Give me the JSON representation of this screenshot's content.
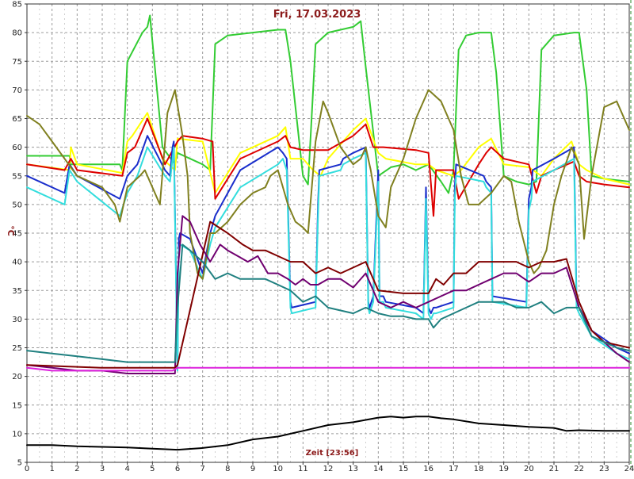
{
  "chart_data": {
    "type": "line",
    "title": "Fri, 17.03.2023",
    "xlabel": "Zeit [23:56]",
    "ylabel": "°C",
    "xlim": [
      0,
      24
    ],
    "ylim": [
      5,
      85
    ],
    "xticks": [
      "0",
      "1",
      "2",
      "3",
      "4",
      "5",
      "6",
      "7",
      "8",
      "9",
      "10",
      "11",
      "12",
      "13",
      "14",
      "15",
      "16",
      "17",
      "18",
      "19",
      "20",
      "21",
      "22",
      "23",
      "24"
    ],
    "yticks": [
      "5",
      "10",
      "15",
      "20",
      "25",
      "30",
      "35",
      "40",
      "45",
      "50",
      "55",
      "60",
      "65",
      "70",
      "75",
      "80",
      "85"
    ],
    "grid": true,
    "series": [
      {
        "color": "#33cc33",
        "x": [
          0,
          1.7,
          1.75,
          3.7,
          3.8,
          4.0,
          4.6,
          4.8,
          4.9,
          5.4,
          5.9,
          6.0,
          7.0,
          7.3,
          7.5,
          8.0,
          9.0,
          10.0,
          10.3,
          10.5,
          11.0,
          11.2,
          11.5,
          12.0,
          13.0,
          13.3,
          13.5,
          14.0,
          14.5,
          15.0,
          15.5,
          16.0,
          16.5,
          16.8,
          17.0,
          17.2,
          17.5,
          18.0,
          18.5,
          18.7,
          19.0,
          19.5,
          20.0,
          20.3,
          20.5,
          21.0,
          21.8,
          22.0,
          22.3,
          22.5,
          23.0,
          24.0
        ],
        "y": [
          58.5,
          58.5,
          57,
          57,
          56,
          75,
          80,
          81,
          83,
          60,
          57,
          59,
          57,
          56,
          78,
          79.5,
          80,
          80.5,
          80.5,
          75,
          55,
          53.5,
          78,
          80,
          81,
          82,
          74,
          55,
          56.5,
          57,
          56,
          57,
          54,
          52,
          56,
          77,
          79.5,
          80,
          80,
          73,
          55,
          54,
          53.5,
          54,
          77,
          79.5,
          80,
          80,
          70,
          55,
          54.5,
          54
        ]
      },
      {
        "color": "#ffff00",
        "x": [
          0,
          1.7,
          1.75,
          2.0,
          3.8,
          4.0,
          4.2,
          4.8,
          5.4,
          5.9,
          6.0,
          7.0,
          7.5,
          8.5,
          10.0,
          10.3,
          10.5,
          11.0,
          11.4,
          11.7,
          12.0,
          13.0,
          13.5,
          14.0,
          14.3,
          15.5,
          16.0,
          16.3,
          17.0,
          17.3,
          18.0,
          18.5,
          19.0,
          20.0,
          20.5,
          21.0,
          21.7,
          22.0,
          22.3,
          23.0,
          24.0
        ],
        "y": [
          57,
          56,
          60,
          57,
          55.5,
          61,
          62,
          66,
          58,
          56,
          61.5,
          61,
          52,
          59,
          62,
          63.5,
          58,
          58,
          56,
          55,
          58,
          63,
          65,
          59,
          58,
          57,
          57,
          56,
          55,
          56,
          60,
          61.5,
          57,
          56.5,
          55,
          58,
          61,
          57,
          56,
          54.5,
          53.5
        ]
      },
      {
        "color": "#dd0000",
        "x": [
          0,
          1.5,
          1.75,
          2.0,
          3.8,
          4.0,
          4.3,
          4.8,
          5.5,
          6.0,
          6.2,
          7.0,
          7.4,
          7.5,
          8.5,
          10.0,
          10.3,
          10.5,
          11.0,
          12.0,
          13.0,
          13.5,
          13.8,
          14.2,
          15.5,
          16.0,
          16.2,
          16.3,
          16.6,
          17.0,
          17.2,
          18.0,
          18.3,
          18.5,
          19.0,
          20.0,
          20.3,
          20.5,
          21.0,
          21.8,
          22.0,
          22.3,
          23.0,
          24.0
        ],
        "y": [
          57,
          56,
          58,
          56,
          55,
          59,
          60,
          65,
          57,
          61,
          62,
          61.5,
          61,
          51,
          58,
          61,
          62,
          60,
          59.5,
          59.5,
          62,
          64,
          60,
          60,
          59.5,
          59,
          48,
          56,
          56,
          56,
          51,
          57,
          59,
          60,
          58,
          57,
          52,
          55,
          56,
          57.5,
          55,
          54,
          53.5,
          53
        ]
      },
      {
        "color": "#1a2ecc",
        "x": [
          0,
          1.5,
          1.7,
          2.0,
          3.7,
          4.0,
          4.4,
          4.8,
          5.5,
          5.7,
          5.8,
          5.85,
          6.0,
          6.05,
          6.1,
          6.5,
          7.0,
          7.3,
          7.5,
          8.5,
          10.0,
          10.2,
          10.35,
          10.5,
          10.55,
          11.5,
          11.6,
          11.65,
          12.5,
          12.6,
          13.0,
          13.5,
          13.6,
          13.65,
          13.8,
          14.0,
          14.05,
          14.2,
          14.3,
          15.5,
          15.8,
          15.9,
          16.0,
          16.1,
          16.2,
          16.3,
          17.0,
          17.05,
          17.1,
          18.2,
          18.3,
          18.5,
          18.55,
          19.9,
          20.0,
          20.1,
          20.15,
          21.0,
          21.8,
          21.9,
          22.0,
          22.5,
          23.5,
          24.0
        ],
        "y": [
          55,
          52,
          57,
          55,
          51,
          55,
          57,
          62,
          56,
          55,
          60,
          61,
          22,
          44,
          45,
          44,
          38,
          45,
          48,
          56,
          60,
          59,
          58,
          33,
          32,
          33,
          50,
          56,
          57,
          58,
          59,
          60,
          33,
          32,
          34,
          56,
          34,
          34,
          33,
          32,
          31,
          53,
          32,
          31,
          32,
          32,
          33,
          53,
          57,
          55,
          54,
          53,
          34,
          33,
          51,
          53,
          56,
          58,
          60,
          33,
          32,
          28,
          25,
          24
        ]
      },
      {
        "color": "#33dddd",
        "x": [
          0,
          1.5,
          1.7,
          2.0,
          3.7,
          4.0,
          4.4,
          4.8,
          5.5,
          5.7,
          5.8,
          5.85,
          6.0,
          6.05,
          6.1,
          6.5,
          7.0,
          7.3,
          7.5,
          8.5,
          10.0,
          10.2,
          10.35,
          10.5,
          10.55,
          11.5,
          11.6,
          11.65,
          12.5,
          12.6,
          13.0,
          13.5,
          13.6,
          13.65,
          13.8,
          14.0,
          14.05,
          14.2,
          14.3,
          15.5,
          15.8,
          15.9,
          16.0,
          16.1,
          16.2,
          16.3,
          17.0,
          17.05,
          17.1,
          18.2,
          18.3,
          18.5,
          18.55,
          19.9,
          20.0,
          20.1,
          20.15,
          21.0,
          21.8,
          21.9,
          22.0,
          22.5,
          23.5,
          24.0
        ],
        "y": [
          53,
          50,
          56,
          54,
          48,
          52,
          55,
          60,
          55,
          54,
          58,
          60,
          21,
          42,
          43,
          42,
          37,
          43,
          46,
          53,
          57,
          58,
          56,
          32,
          31,
          32,
          48,
          55,
          56,
          57,
          58,
          59,
          32,
          31,
          33,
          54,
          33,
          33,
          32,
          31,
          30,
          51,
          31,
          30,
          31,
          31,
          32,
          51,
          55,
          54,
          53,
          52,
          33,
          32,
          49,
          51,
          54,
          56,
          58,
          32,
          31,
          27,
          24,
          23
        ]
      },
      {
        "color": "#808020",
        "x": [
          0,
          0.5,
          1.0,
          2.0,
          3.0,
          3.5,
          3.7,
          4.0,
          4.5,
          4.7,
          5.0,
          5.3,
          5.6,
          5.9,
          6.2,
          6.4,
          6.5,
          6.8,
          7.0,
          7.2,
          7.3,
          7.5,
          8.0,
          8.5,
          9.0,
          9.5,
          9.7,
          10.0,
          10.4,
          10.7,
          11.0,
          11.2,
          11.5,
          11.8,
          12.0,
          12.5,
          13.0,
          13.3,
          13.5,
          13.7,
          14.0,
          14.3,
          14.5,
          15.0,
          15.5,
          16.0,
          16.5,
          17.0,
          17.3,
          17.6,
          18.0,
          18.5,
          19.0,
          19.3,
          19.6,
          20.0,
          20.2,
          20.4,
          20.7,
          21.0,
          21.3,
          21.7,
          22.0,
          22.2,
          22.5,
          23.0,
          23.5,
          24.0
        ],
        "y": [
          65.5,
          64,
          61,
          55,
          53,
          50,
          47,
          53,
          55,
          56,
          53,
          50,
          66,
          70,
          62,
          55,
          45,
          38,
          37,
          42,
          45,
          45,
          47,
          50,
          52,
          53,
          55,
          56,
          50,
          47,
          46,
          45,
          61,
          68,
          66,
          60,
          57,
          58,
          60,
          56,
          48,
          46,
          53,
          58,
          65,
          70,
          68,
          63,
          55,
          50,
          50,
          52,
          55,
          54,
          47,
          40,
          38,
          39,
          42,
          50,
          55,
          60,
          57,
          44,
          55,
          67,
          68,
          63
        ]
      },
      {
        "color": "#700070",
        "x": [
          0,
          1.0,
          2.0,
          3.0,
          4.0,
          5.0,
          5.9,
          6.0,
          6.2,
          6.5,
          6.9,
          7.3,
          7.7,
          8.0,
          8.4,
          8.8,
          9.2,
          9.6,
          10.0,
          10.4,
          10.7,
          11.0,
          11.3,
          11.6,
          12.0,
          12.5,
          13.0,
          13.5,
          14.0,
          14.5,
          15.0,
          15.5,
          16.0,
          16.5,
          17.0,
          17.5,
          18.0,
          18.5,
          19.0,
          19.5,
          20.0,
          20.5,
          21.0,
          21.5,
          22.0,
          22.5,
          23.0,
          23.5,
          24.0
        ],
        "y": [
          22,
          21.5,
          21,
          21,
          20.5,
          20.5,
          20.5,
          38,
          48,
          47,
          43,
          40,
          43,
          42,
          41,
          40,
          41,
          38,
          38,
          37,
          36,
          37,
          36,
          36,
          37,
          37,
          35.5,
          38,
          33,
          32,
          33,
          32,
          33,
          34,
          35,
          35,
          36,
          37,
          38,
          38,
          36.5,
          38,
          38,
          39,
          32,
          28,
          26,
          24,
          22.5
        ]
      },
      {
        "color": "#800000",
        "x": [
          0,
          3.0,
          5.9,
          6.0,
          7.3,
          8.0,
          8.6,
          9.0,
          9.5,
          10.0,
          10.5,
          11.0,
          11.5,
          12.0,
          12.5,
          13.0,
          13.5,
          14.0,
          15.0,
          16.0,
          16.3,
          16.6,
          17.0,
          17.5,
          18.0,
          18.5,
          19.0,
          19.5,
          20.0,
          20.5,
          21.0,
          21.5,
          22.0,
          22.5,
          23.0,
          24.0
        ],
        "y": [
          22,
          21.5,
          21.5,
          22,
          47,
          45,
          43,
          42,
          42,
          41,
          40,
          40,
          38,
          39,
          38,
          39,
          40,
          35,
          34.5,
          34.5,
          37,
          36,
          38,
          38,
          40,
          40,
          40,
          40,
          39,
          40,
          40,
          40.5,
          33,
          28,
          26,
          25
        ]
      },
      {
        "color": "#208080",
        "x": [
          0,
          1.0,
          2.0,
          3.0,
          4.0,
          5.0,
          5.9,
          6.0,
          6.2,
          6.5,
          7.0,
          7.5,
          8.0,
          8.5,
          9.0,
          9.5,
          10.0,
          10.5,
          11.0,
          11.5,
          12.0,
          12.5,
          13.0,
          13.5,
          14.0,
          14.5,
          15.0,
          15.5,
          16.0,
          16.2,
          16.5,
          17.0,
          17.5,
          18.0,
          18.5,
          19.0,
          19.5,
          20.0,
          20.5,
          21.0,
          21.5,
          22.0,
          22.5,
          23.0,
          23.5,
          24.0
        ],
        "y": [
          24.5,
          24,
          23.5,
          23,
          22.5,
          22.5,
          22.5,
          32,
          43,
          42,
          40,
          37,
          38,
          37,
          37,
          37,
          36,
          35,
          33,
          34,
          32,
          31.5,
          31,
          32,
          31,
          30.5,
          30.5,
          30,
          30,
          28.5,
          30,
          31,
          32,
          33,
          33,
          33,
          32,
          32,
          33,
          31,
          32,
          32,
          27,
          26,
          25,
          24.5
        ]
      },
      {
        "color": "#dd22dd",
        "x": [
          0,
          1.0,
          2.0,
          3.0,
          4.0,
          5.0,
          5.8,
          6.0,
          6.5,
          7.0,
          8.0,
          9.0,
          10.0,
          11.0,
          12.0,
          13.0,
          14.0,
          15.0,
          16.0,
          17.0,
          18.0,
          19.0,
          20.0,
          21.0,
          22.0,
          23.0,
          24.0
        ],
        "y": [
          21.5,
          21,
          21,
          21,
          21,
          21,
          21,
          21.5,
          21.5,
          21.5,
          21.5,
          21.5,
          21.5,
          21.5,
          21.5,
          21.5,
          21.5,
          21.5,
          21.5,
          21.5,
          21.5,
          21.5,
          21.5,
          21.5,
          21.5,
          21.5,
          21.5
        ]
      },
      {
        "color": "#000000",
        "x": [
          0,
          1.0,
          2.0,
          3.0,
          4.0,
          5.0,
          6.0,
          7.0,
          8.0,
          9.0,
          10.0,
          11.0,
          12.0,
          13.0,
          14.0,
          14.5,
          15.0,
          15.5,
          16.0,
          16.5,
          17.0,
          18.0,
          19.0,
          20.0,
          21.0,
          21.5,
          22.0,
          23.0,
          24.0
        ],
        "y": [
          8,
          8,
          7.8,
          7.7,
          7.6,
          7.4,
          7.2,
          7.5,
          8,
          9,
          9.5,
          10.5,
          11.5,
          12,
          12.8,
          13,
          12.8,
          13,
          13,
          12.7,
          12.5,
          11.8,
          11.5,
          11.2,
          11,
          10.5,
          10.6,
          10.5,
          10.5
        ]
      }
    ]
  }
}
